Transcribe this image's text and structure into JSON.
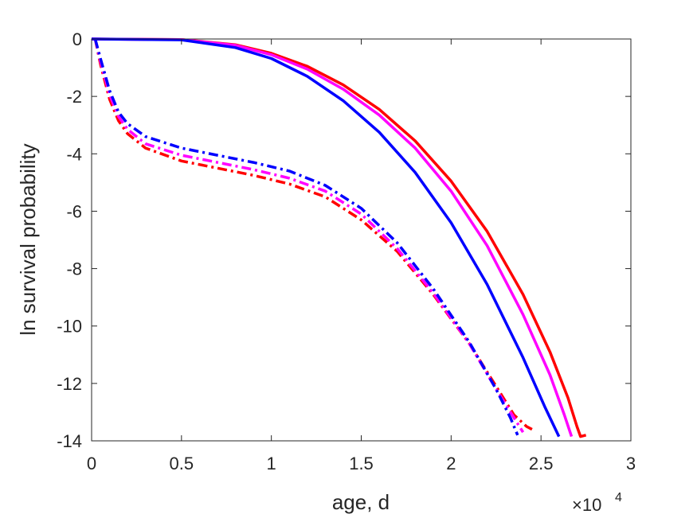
{
  "chart_data": {
    "type": "line",
    "xlabel": "age, d",
    "ylabel": "ln survival probability",
    "x_exponent_base": "×10",
    "x_exponent_power": "4",
    "xlim": [
      0,
      3
    ],
    "ylim": [
      -14,
      0
    ],
    "xticks": [
      "0",
      "0.5",
      "1",
      "1.5",
      "2",
      "2.5",
      "3"
    ],
    "xtick_values": [
      0,
      0.5,
      1,
      1.5,
      2,
      2.5,
      3
    ],
    "yticks": [
      "0",
      "-2",
      "-4",
      "-6",
      "-8",
      "-10",
      "-12",
      "-14"
    ],
    "ytick_values": [
      0,
      -2,
      -4,
      -6,
      -8,
      -10,
      -12,
      -14
    ],
    "grid": false,
    "box": true,
    "series": [
      {
        "color": "#ff0000",
        "style": "solid",
        "points": [
          [
            0,
            0
          ],
          [
            0.5,
            -0.02
          ],
          [
            0.8,
            -0.2
          ],
          [
            1.0,
            -0.5
          ],
          [
            1.2,
            -0.95
          ],
          [
            1.4,
            -1.6
          ],
          [
            1.6,
            -2.45
          ],
          [
            1.8,
            -3.55
          ],
          [
            2.0,
            -4.95
          ],
          [
            2.2,
            -6.7
          ],
          [
            2.4,
            -8.9
          ],
          [
            2.55,
            -10.9
          ],
          [
            2.65,
            -12.5
          ],
          [
            2.7,
            -13.5
          ],
          [
            2.72,
            -13.85
          ],
          [
            2.75,
            -13.8
          ]
        ]
      },
      {
        "color": "#ff00ff",
        "style": "solid",
        "points": [
          [
            0,
            0
          ],
          [
            0.5,
            -0.02
          ],
          [
            0.8,
            -0.22
          ],
          [
            1.0,
            -0.55
          ],
          [
            1.2,
            -1.05
          ],
          [
            1.4,
            -1.75
          ],
          [
            1.6,
            -2.65
          ],
          [
            1.8,
            -3.8
          ],
          [
            2.0,
            -5.3
          ],
          [
            2.2,
            -7.2
          ],
          [
            2.4,
            -9.6
          ],
          [
            2.55,
            -11.7
          ],
          [
            2.63,
            -13.1
          ],
          [
            2.67,
            -13.85
          ]
        ]
      },
      {
        "color": "#0000ff",
        "style": "solid",
        "points": [
          [
            0,
            0
          ],
          [
            0.5,
            -0.03
          ],
          [
            0.8,
            -0.3
          ],
          [
            1.0,
            -0.68
          ],
          [
            1.2,
            -1.3
          ],
          [
            1.4,
            -2.15
          ],
          [
            1.6,
            -3.25
          ],
          [
            1.8,
            -4.65
          ],
          [
            2.0,
            -6.4
          ],
          [
            2.2,
            -8.55
          ],
          [
            2.4,
            -11.1
          ],
          [
            2.52,
            -12.8
          ],
          [
            2.6,
            -13.85
          ]
        ]
      },
      {
        "color": "#ff0000",
        "style": "dashdot",
        "points": [
          [
            0.02,
            0
          ],
          [
            0.05,
            -0.9
          ],
          [
            0.1,
            -2.1
          ],
          [
            0.15,
            -2.85
          ],
          [
            0.2,
            -3.3
          ],
          [
            0.3,
            -3.8
          ],
          [
            0.5,
            -4.25
          ],
          [
            0.7,
            -4.5
          ],
          [
            0.9,
            -4.75
          ],
          [
            1.1,
            -5.05
          ],
          [
            1.3,
            -5.5
          ],
          [
            1.5,
            -6.3
          ],
          [
            1.7,
            -7.4
          ],
          [
            1.9,
            -8.9
          ],
          [
            2.1,
            -10.6
          ],
          [
            2.25,
            -12.1
          ],
          [
            2.35,
            -13.1
          ],
          [
            2.42,
            -13.5
          ],
          [
            2.45,
            -13.6
          ]
        ]
      },
      {
        "color": "#ff00ff",
        "style": "dashdot",
        "points": [
          [
            0.02,
            0
          ],
          [
            0.05,
            -0.8
          ],
          [
            0.1,
            -1.95
          ],
          [
            0.15,
            -2.7
          ],
          [
            0.2,
            -3.15
          ],
          [
            0.3,
            -3.65
          ],
          [
            0.5,
            -4.05
          ],
          [
            0.7,
            -4.3
          ],
          [
            0.9,
            -4.55
          ],
          [
            1.1,
            -4.85
          ],
          [
            1.3,
            -5.3
          ],
          [
            1.5,
            -6.1
          ],
          [
            1.7,
            -7.3
          ],
          [
            1.9,
            -8.85
          ],
          [
            2.1,
            -10.6
          ],
          [
            2.25,
            -12.2
          ],
          [
            2.35,
            -13.2
          ],
          [
            2.4,
            -13.7
          ]
        ]
      },
      {
        "color": "#0000ff",
        "style": "dashdot",
        "points": [
          [
            0.02,
            0
          ],
          [
            0.05,
            -0.7
          ],
          [
            0.1,
            -1.8
          ],
          [
            0.15,
            -2.55
          ],
          [
            0.2,
            -2.95
          ],
          [
            0.3,
            -3.4
          ],
          [
            0.5,
            -3.8
          ],
          [
            0.7,
            -4.05
          ],
          [
            0.9,
            -4.3
          ],
          [
            1.1,
            -4.6
          ],
          [
            1.3,
            -5.1
          ],
          [
            1.5,
            -5.9
          ],
          [
            1.7,
            -7.1
          ],
          [
            1.9,
            -8.7
          ],
          [
            2.1,
            -10.55
          ],
          [
            2.25,
            -12.2
          ],
          [
            2.33,
            -13.2
          ],
          [
            2.37,
            -13.8
          ]
        ]
      }
    ]
  }
}
